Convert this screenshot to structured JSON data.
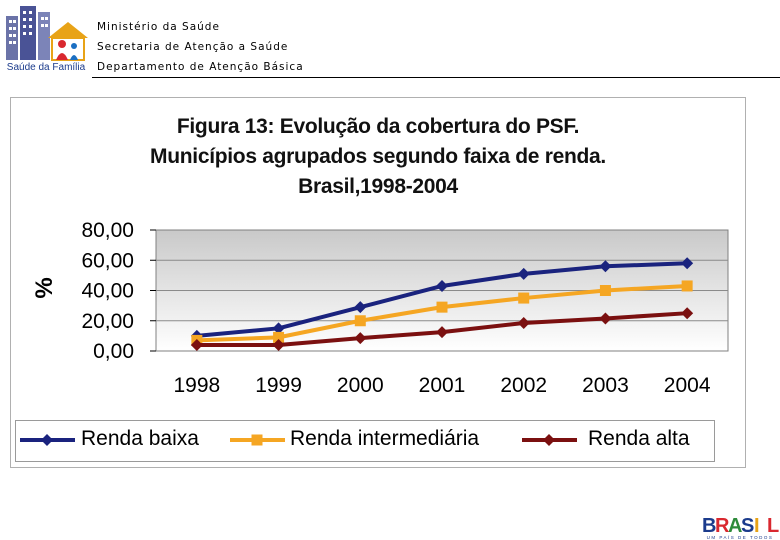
{
  "header": {
    "logo_caption": "Saúde da Família",
    "line1": "Ministério da Saúde",
    "line2": "Secretaria de Atenção a Saúde",
    "line3": "Departamento de Atenção Básica"
  },
  "colors": {
    "series_low": "#1a237e",
    "series_mid": "#f5a623",
    "series_high": "#7b1010",
    "plot_bg_top": "#c9c9c9",
    "plot_bg_bottom": "#ffffff"
  },
  "chart_data": {
    "type": "line",
    "title": [
      "Figura 13:  Evolução da cobertura do PSF.",
      "Municípios agrupados segundo faixa de renda.",
      "Brasil,1998-2004"
    ],
    "xlabel": "",
    "ylabel": "%",
    "ylim": [
      0,
      80
    ],
    "yticks": [
      "0,00",
      "20,00",
      "40,00",
      "60,00",
      "80,00"
    ],
    "categories": [
      "1998",
      "1999",
      "2000",
      "2001",
      "2002",
      "2003",
      "2004"
    ],
    "series": [
      {
        "name": "Renda baixa",
        "marker": "diamond",
        "values": [
          10,
          15,
          29,
          43,
          51,
          56,
          58
        ]
      },
      {
        "name": "Renda intermediária",
        "marker": "square",
        "values": [
          7,
          9,
          20,
          29,
          35,
          40,
          43
        ]
      },
      {
        "name": "Renda alta",
        "marker": "diamond",
        "values": [
          4,
          4,
          8.5,
          12.5,
          18.5,
          21.5,
          25
        ]
      }
    ],
    "grid": true,
    "legend_position": "bottom"
  },
  "footer": {
    "brand_letters": [
      "B",
      "R",
      "A",
      "S",
      "I",
      "L"
    ],
    "slogan": "UM PAÍS DE TODOS"
  }
}
